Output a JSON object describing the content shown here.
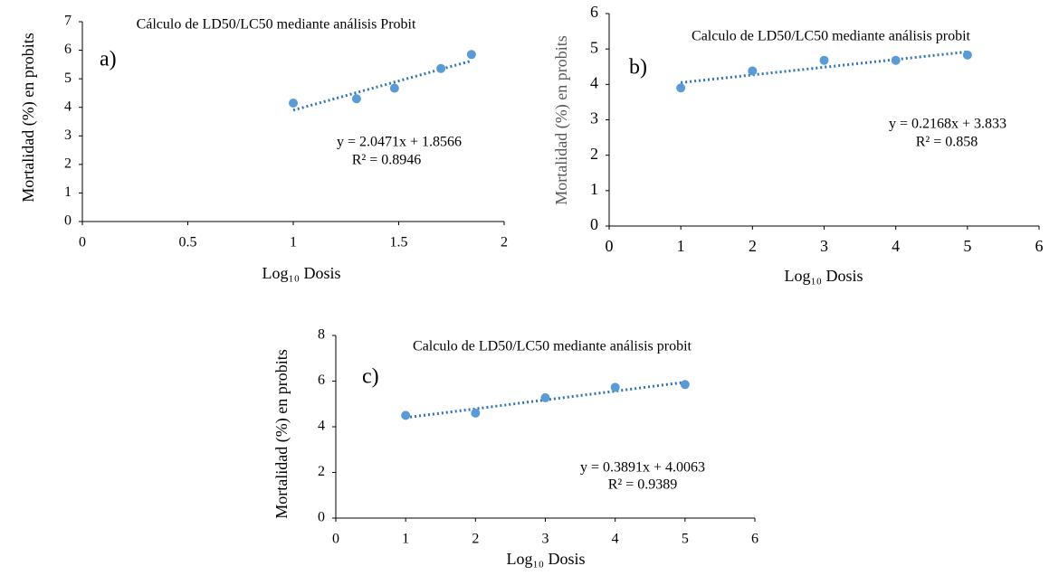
{
  "chart_data": [
    {
      "type": "scatter",
      "title": "Cálculo de LD50/LC50 mediante análisis Probit",
      "panel_label": "a)",
      "x_label": "Log₁₀ Dosis",
      "y_label": "Mortalidad (%) en probits",
      "equation": "y = 2.0471x + 1.8566",
      "r_squared": "R² = 0.8946",
      "x": [
        1,
        1.3,
        1.48,
        1.7,
        1.845
      ],
      "values": [
        4.15,
        4.3,
        4.67,
        5.36,
        5.85
      ],
      "color": "#5b9bd5",
      "trendline": {
        "x": [
          1,
          1.845
        ],
        "values": [
          3.9,
          5.63
        ],
        "color": "#2e75b6"
      },
      "xlim": [
        0,
        2
      ],
      "xticks": [
        0,
        0.5,
        1,
        1.5,
        2
      ],
      "ylim": [
        0,
        7
      ],
      "yticks": [
        0,
        1,
        2,
        3,
        4,
        5,
        6,
        7
      ]
    },
    {
      "type": "scatter",
      "title": "Calculo de LD50/LC50 mediante análisis probit",
      "panel_label": "b)",
      "x_label": "Log₁₀ Dosis",
      "y_label": "Mortalidad (%) en probits",
      "equation": "y = 0.2168x + 3.833",
      "r_squared": "R² = 0.858",
      "x": [
        1,
        2,
        3,
        4,
        5
      ],
      "values": [
        3.9,
        4.38,
        4.68,
        4.68,
        4.83
      ],
      "color": "#5b9bd5",
      "trendline": {
        "x": [
          1,
          5
        ],
        "values": [
          4.05,
          4.92
        ],
        "color": "#2e75b6"
      },
      "xlim": [
        0,
        6
      ],
      "xticks": [
        0,
        1,
        2,
        3,
        4,
        5,
        6
      ],
      "ylim": [
        0,
        6
      ],
      "yticks": [
        0,
        1,
        2,
        3,
        4,
        5,
        6
      ]
    },
    {
      "type": "scatter",
      "title": "Calculo de LD50/LC50 mediante análisis probit",
      "panel_label": "c)",
      "x_label": "Log₁₀ Dosis",
      "y_label": "Mortalidad (%) en probits",
      "equation": "y = 0.3891x + 4.0063",
      "r_squared": "R² = 0.9389",
      "x": [
        1,
        2,
        3,
        4,
        5
      ],
      "values": [
        4.5,
        4.6,
        5.27,
        5.73,
        5.85
      ],
      "color": "#5b9bd5",
      "trendline": {
        "x": [
          1,
          5
        ],
        "values": [
          4.4,
          5.95
        ],
        "color": "#2e75b6"
      },
      "xlim": [
        0,
        6
      ],
      "xticks": [
        0,
        1,
        2,
        3,
        4,
        5,
        6
      ],
      "ylim": [
        0,
        8
      ],
      "yticks": [
        0,
        2,
        4,
        6,
        8
      ]
    }
  ]
}
